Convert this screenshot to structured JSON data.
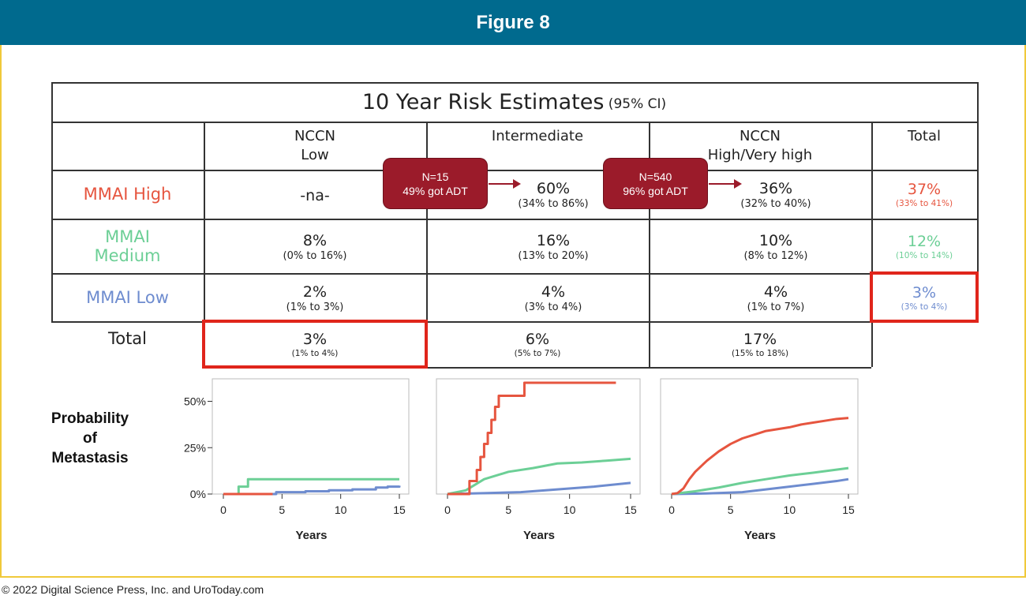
{
  "figure_title": "Figure 8",
  "copyright": "© 2022 Digital Science Press, Inc. and UroToday.com",
  "table": {
    "title": "10 Year Risk Estimates",
    "title_suffix": "(95% CI)",
    "columns": [
      {
        "line1": "NCCN",
        "line2": "Low"
      },
      {
        "line1": "Intermediate",
        "line2": ""
      },
      {
        "line1": "NCCN",
        "line2": "High/Very high"
      },
      {
        "line1": "Total",
        "line2": ""
      }
    ],
    "rows": [
      {
        "line1": "MMAI High",
        "line2": "",
        "color": "#e6553f",
        "cells": [
          {
            "value": "-na-",
            "ci": ""
          },
          {
            "value": "60%",
            "ci": "(34% to 86%)"
          },
          {
            "value": "36%",
            "ci": "(32% to 40%)"
          },
          {
            "value": "37%",
            "ci": "(33% to 41%)"
          }
        ]
      },
      {
        "line1": "MMAI",
        "line2": "Medium",
        "color": "#6ccf96",
        "cells": [
          {
            "value": "8%",
            "ci": "(0% to 16%)"
          },
          {
            "value": "16%",
            "ci": "(13% to 20%)"
          },
          {
            "value": "10%",
            "ci": "(8% to 12%)"
          },
          {
            "value": "12%",
            "ci": "(10% to 14%)"
          }
        ]
      },
      {
        "line1": "MMAI Low",
        "line2": "",
        "color": "#6e8ccf",
        "cells": [
          {
            "value": "2%",
            "ci": "(1% to 3%)"
          },
          {
            "value": "4%",
            "ci": "(3% to 4%)"
          },
          {
            "value": "4%",
            "ci": "(1% to 7%)"
          },
          {
            "value": "3%",
            "ci": "(3% to 4%)"
          }
        ]
      }
    ],
    "total_row": {
      "label": "Total",
      "cells": [
        {
          "value": "3%",
          "ci": "(1% to 4%)"
        },
        {
          "value": "6%",
          "ci": "(5% to 7%)"
        },
        {
          "value": "17%",
          "ci": "(15% to 18%)"
        }
      ]
    },
    "badges": [
      {
        "line1": "N=15",
        "line2": "49% got ADT"
      },
      {
        "line1": "N=540",
        "line2": "96% got ADT"
      }
    ],
    "highlight_color": "#e0251b"
  },
  "probability_label": [
    "Probability",
    "of",
    "Metastasis"
  ],
  "chart_data": [
    {
      "type": "line",
      "panel": "NCCN Low",
      "xlabel": "Years",
      "ylabel": "",
      "xlim": [
        0,
        15
      ],
      "ylim": [
        0,
        0.6
      ],
      "xticks": [
        0,
        5,
        10,
        15
      ],
      "yticks": [
        {
          "v": 0,
          "label": "0%"
        },
        {
          "v": 0.25,
          "label": "25%"
        },
        {
          "v": 0.5,
          "label": "50%"
        }
      ],
      "series": [
        {
          "color": "#6e8ccf",
          "step": true,
          "points": [
            [
              0,
              0
            ],
            [
              4,
              0
            ],
            [
              4.5,
              0.01
            ],
            [
              7,
              0.015
            ],
            [
              9,
              0.02
            ],
            [
              11,
              0.025
            ],
            [
              13,
              0.035
            ],
            [
              14,
              0.04
            ],
            [
              15,
              0.045
            ]
          ]
        },
        {
          "color": "#6ccf96",
          "step": true,
          "points": [
            [
              0,
              0
            ],
            [
              1.1,
              0
            ],
            [
              1.3,
              0.04
            ],
            [
              2,
              0.04
            ],
            [
              2.1,
              0.08
            ],
            [
              15,
              0.08
            ]
          ]
        },
        {
          "color": "#e6553f",
          "step": true,
          "points": [
            [
              0,
              0
            ],
            [
              4.2,
              0
            ]
          ]
        }
      ]
    },
    {
      "type": "line",
      "panel": "Intermediate",
      "xlabel": "Years",
      "ylabel": "",
      "xlim": [
        0,
        15
      ],
      "ylim": [
        0,
        0.6
      ],
      "xticks": [
        0,
        5,
        10,
        15
      ],
      "yticks": [],
      "series": [
        {
          "color": "#6e8ccf",
          "step": false,
          "points": [
            [
              0,
              0
            ],
            [
              3,
              0.005
            ],
            [
              6,
              0.01
            ],
            [
              9,
              0.025
            ],
            [
              12,
              0.04
            ],
            [
              15,
              0.06
            ]
          ]
        },
        {
          "color": "#6ccf96",
          "step": false,
          "points": [
            [
              0,
              0
            ],
            [
              1.5,
              0.02
            ],
            [
              3,
              0.08
            ],
            [
              5,
              0.12
            ],
            [
              7,
              0.14
            ],
            [
              9,
              0.165
            ],
            [
              11,
              0.17
            ],
            [
              13,
              0.18
            ],
            [
              15,
              0.19
            ]
          ]
        },
        {
          "color": "#e6553f",
          "step": true,
          "points": [
            [
              0,
              0
            ],
            [
              1.6,
              0
            ],
            [
              1.8,
              0.07
            ],
            [
              2.2,
              0.07
            ],
            [
              2.4,
              0.13
            ],
            [
              2.7,
              0.2
            ],
            [
              3,
              0.27
            ],
            [
              3.3,
              0.33
            ],
            [
              3.6,
              0.4
            ],
            [
              3.9,
              0.47
            ],
            [
              4.2,
              0.53
            ],
            [
              4.5,
              0.53
            ],
            [
              6,
              0.53
            ],
            [
              6.3,
              0.6
            ],
            [
              13.8,
              0.6
            ]
          ]
        }
      ]
    },
    {
      "type": "line",
      "panel": "NCCN High/Very high",
      "xlabel": "Years",
      "ylabel": "",
      "xlim": [
        0,
        15
      ],
      "ylim": [
        0,
        0.6
      ],
      "xticks": [
        0,
        5,
        10,
        15
      ],
      "yticks": [],
      "series": [
        {
          "color": "#6e8ccf",
          "step": false,
          "points": [
            [
              0,
              0
            ],
            [
              3,
              0.003
            ],
            [
              6,
              0.01
            ],
            [
              8,
              0.025
            ],
            [
              10,
              0.04
            ],
            [
              12,
              0.055
            ],
            [
              14,
              0.07
            ],
            [
              15,
              0.08
            ]
          ]
        },
        {
          "color": "#6ccf96",
          "step": false,
          "points": [
            [
              0,
              0
            ],
            [
              2,
              0.015
            ],
            [
              4,
              0.035
            ],
            [
              6,
              0.06
            ],
            [
              8,
              0.08
            ],
            [
              10,
              0.1
            ],
            [
              12,
              0.115
            ],
            [
              15,
              0.14
            ]
          ]
        },
        {
          "color": "#e6553f",
          "step": false,
          "points": [
            [
              0,
              0
            ],
            [
              0.5,
              0.005
            ],
            [
              1,
              0.03
            ],
            [
              1.5,
              0.08
            ],
            [
              2,
              0.12
            ],
            [
              3,
              0.18
            ],
            [
              4,
              0.23
            ],
            [
              5,
              0.27
            ],
            [
              6,
              0.3
            ],
            [
              7,
              0.32
            ],
            [
              8,
              0.34
            ],
            [
              9,
              0.35
            ],
            [
              10,
              0.36
            ],
            [
              11,
              0.375
            ],
            [
              12,
              0.385
            ],
            [
              13,
              0.395
            ],
            [
              14,
              0.405
            ],
            [
              15,
              0.41
            ]
          ]
        }
      ]
    }
  ]
}
